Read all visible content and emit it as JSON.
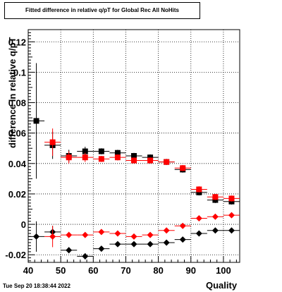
{
  "chart_data": {
    "type": "scatter",
    "title": "Fitted difference in relative q/pT for Global Rec All NoHits",
    "xlabel": "Quality",
    "ylabel": "difference in relative q/pT",
    "xlim": [
      40,
      105
    ],
    "ylim": [
      -0.025,
      0.128
    ],
    "x_ticks": [
      40,
      50,
      60,
      70,
      80,
      90,
      100
    ],
    "y_ticks": [
      -0.02,
      0,
      0.02,
      0.04,
      0.06,
      0.08,
      0.1,
      0.12
    ],
    "y_tick_labels": [
      "-0.02",
      "0",
      "0.02",
      "0.04",
      "0.06",
      "0.08",
      "0.1",
      "0.12"
    ],
    "grid": true,
    "series": [
      {
        "marker": "square",
        "color": "#000000",
        "x": [
          42.5,
          47.5,
          52.5,
          57.5,
          62.5,
          67.5,
          72.5,
          77.5,
          82.5,
          87.5,
          92.5,
          97.5,
          102.5
        ],
        "y": [
          0.068,
          0.052,
          0.045,
          0.048,
          0.048,
          0.047,
          0.045,
          0.044,
          0.041,
          0.036,
          0.021,
          0.016,
          0.015
        ],
        "err": [
          0.038,
          0.009,
          0.004,
          0.003,
          0.002,
          0.002,
          0.002,
          0.002,
          0.002,
          0.002,
          0.002,
          0.002,
          0.002
        ]
      },
      {
        "marker": "square",
        "color": "#ff0000",
        "x": [
          47.5,
          52.5,
          57.5,
          62.5,
          67.5,
          72.5,
          77.5,
          82.5,
          87.5,
          92.5,
          97.5,
          102.5
        ],
        "y": [
          0.054,
          0.044,
          0.044,
          0.043,
          0.044,
          0.042,
          0.042,
          0.041,
          0.037,
          0.023,
          0.018,
          0.017
        ],
        "err": [
          0.009,
          0.004,
          0.003,
          0.002,
          0.002,
          0.002,
          0.002,
          0.002,
          0.002,
          0.002,
          0.002,
          0.002
        ]
      },
      {
        "marker": "diamond",
        "color": "#000000",
        "x": [
          42.5,
          47.5,
          52.5,
          57.5,
          62.5,
          67.5,
          72.5,
          77.5,
          82.5,
          87.5,
          92.5,
          97.5,
          102.5
        ],
        "y": [
          -0.008,
          -0.005,
          -0.017,
          -0.021,
          -0.016,
          -0.013,
          -0.013,
          -0.013,
          -0.012,
          -0.01,
          -0.006,
          -0.004,
          -0.004
        ],
        "err": [
          0.01,
          0.004,
          0.002,
          0.002,
          0.001,
          0.001,
          0.001,
          0.001,
          0.001,
          0.001,
          0.001,
          0.001,
          0.001
        ]
      },
      {
        "marker": "diamond",
        "color": "#ff0000",
        "x": [
          47.5,
          52.5,
          57.5,
          62.5,
          67.5,
          72.5,
          77.5,
          82.5,
          87.5,
          92.5,
          97.5,
          102.5
        ],
        "y": [
          -0.008,
          -0.007,
          -0.007,
          -0.005,
          -0.006,
          -0.008,
          -0.007,
          -0.004,
          -0.001,
          0.004,
          0.005,
          0.006
        ],
        "err": [
          0.007,
          0.002,
          0.001,
          0.001,
          0.001,
          0.001,
          0.001,
          0.001,
          0.001,
          0.001,
          0.001,
          0.001
        ]
      }
    ]
  },
  "footer": {
    "timestamp": "Tue Sep 20 18:38:44 2022"
  }
}
